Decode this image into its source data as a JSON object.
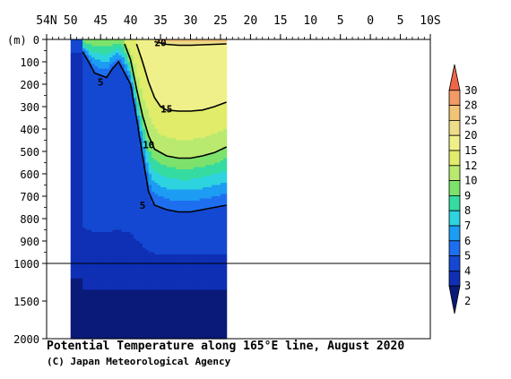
{
  "chart_data": {
    "type": "heatmap",
    "title": "Potential Temperature along 165°E line, August 2020",
    "credit": "(C) Japan Meteorological Agency",
    "x_axis": {
      "ticks": [
        "54N",
        "50",
        "45",
        "40",
        "35",
        "30",
        "25",
        "20",
        "15",
        "10",
        "5",
        "0",
        "5",
        "10S"
      ],
      "tick_lat": [
        54,
        50,
        45,
        40,
        35,
        30,
        25,
        20,
        15,
        10,
        5,
        0,
        -5,
        -10
      ],
      "range": [
        54,
        -10
      ]
    },
    "y_axis": {
      "unit_label": "(m)",
      "ticks": [
        "0",
        "100",
        "200",
        "300",
        "400",
        "500",
        "600",
        "700",
        "800",
        "900",
        "1000",
        "1500",
        "2000"
      ],
      "tick_depth": [
        0,
        100,
        200,
        300,
        400,
        500,
        600,
        700,
        800,
        900,
        1000,
        1500,
        2000
      ],
      "upper_range": [
        0,
        1000
      ],
      "lower_range": [
        1000,
        2000
      ]
    },
    "colorbar": {
      "labels": [
        "30",
        "28",
        "25",
        "20",
        "15",
        "12",
        "10",
        "9",
        "8",
        "7",
        "6",
        "5",
        "4",
        "3",
        "2"
      ],
      "levels": [
        2,
        3,
        4,
        5,
        6,
        7,
        8,
        9,
        10,
        12,
        15,
        20,
        25,
        28,
        30
      ],
      "colors": [
        "#0a1a78",
        "#0f2fb4",
        "#1448d2",
        "#1e6ef0",
        "#1c9cf2",
        "#2ed3e0",
        "#35dba0",
        "#7de26c",
        "#b9ea6f",
        "#e0ec6a",
        "#f0f08a",
        "#eedd88",
        "#f2c478",
        "#f39a66",
        "#ee6648"
      ]
    },
    "data_extent_lat": [
      50,
      24
    ],
    "isotherm_labels": [
      "20",
      "15",
      "10",
      "5",
      "5"
    ],
    "isotherms": [
      {
        "value": 5,
        "profile": [
          [
            48,
            55
          ],
          [
            47,
            100
          ],
          [
            46,
            150
          ],
          [
            44,
            170
          ],
          [
            43,
            130
          ],
          [
            42,
            100
          ],
          [
            40,
            200
          ],
          [
            39,
            350
          ],
          [
            38,
            520
          ],
          [
            37,
            680
          ],
          [
            36,
            740
          ],
          [
            34,
            760
          ],
          [
            32,
            770
          ],
          [
            30,
            770
          ],
          [
            28,
            760
          ],
          [
            26,
            750
          ],
          [
            24,
            740
          ]
        ]
      },
      {
        "value": 10,
        "profile": [
          [
            41,
            20
          ],
          [
            40,
            90
          ],
          [
            39,
            220
          ],
          [
            38,
            340
          ],
          [
            37,
            430
          ],
          [
            36,
            490
          ],
          [
            34,
            520
          ],
          [
            32,
            530
          ],
          [
            30,
            530
          ],
          [
            28,
            520
          ],
          [
            26,
            505
          ],
          [
            24,
            480
          ]
        ]
      },
      {
        "value": 15,
        "profile": [
          [
            39,
            20
          ],
          [
            38,
            100
          ],
          [
            37,
            190
          ],
          [
            36,
            260
          ],
          [
            35,
            300
          ],
          [
            34,
            315
          ],
          [
            32,
            320
          ],
          [
            30,
            320
          ],
          [
            28,
            315
          ],
          [
            26,
            300
          ],
          [
            24,
            280
          ]
        ]
      },
      {
        "value": 20,
        "profile": [
          [
            36,
            10
          ],
          [
            34,
            22
          ],
          [
            32,
            26
          ],
          [
            30,
            26
          ],
          [
            28,
            24
          ],
          [
            26,
            22
          ],
          [
            24,
            20
          ]
        ]
      }
    ]
  }
}
